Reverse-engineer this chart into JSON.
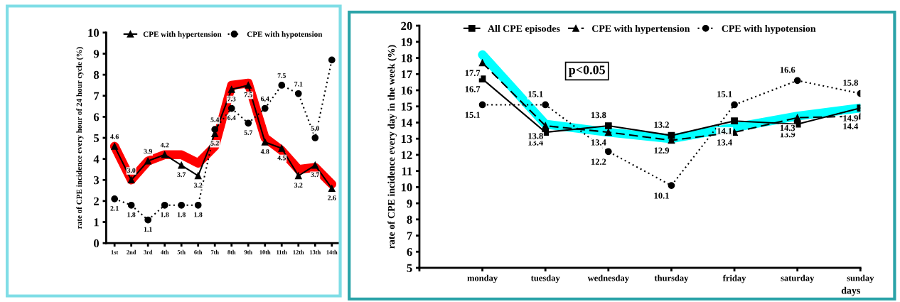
{
  "chart_data": [
    {
      "type": "line",
      "ylabel": "rate of CPE incidence every hour of 24 hour cycle (%)",
      "categories": [
        "1st",
        "2nd",
        "3rd",
        "4th",
        "5th",
        "6th",
        "7th",
        "8th",
        "9th",
        "10th",
        "11th",
        "12th",
        "13th",
        "14th"
      ],
      "ylim": [
        0,
        10
      ],
      "yticks": [
        0,
        1,
        2,
        3,
        4,
        5,
        6,
        7,
        8,
        9,
        10
      ],
      "grid": false,
      "legend": "top",
      "series": [
        {
          "name": "CPE with hypertension",
          "color": "#000000",
          "marker": "triangle",
          "line_style": "solid",
          "values": [
            4.6,
            3.0,
            3.9,
            4.2,
            3.7,
            3.2,
            5.2,
            7.3,
            7.5,
            4.8,
            4.5,
            3.2,
            3.7,
            2.6
          ],
          "value_labels": [
            "4.6",
            "3.0",
            "3.9",
            "4.2",
            "3.7",
            "3.2",
            "5.2",
            "7.3",
            "7.5",
            "4.8",
            "4.5",
            "3.2",
            "3.7",
            "2.6"
          ]
        },
        {
          "name": "CPE with hypotension",
          "color": "#000000",
          "marker": "circle",
          "line_style": "dotted",
          "values": [
            2.1,
            1.8,
            1.1,
            1.8,
            1.8,
            1.8,
            5.4,
            6.4,
            5.7,
            6.4,
            7.5,
            7.1,
            5.0,
            8.7
          ],
          "value_labels": [
            "2.1",
            "1.8",
            "1.1",
            "1.8",
            "1.8",
            "1.8",
            "5.4",
            "6.4",
            "5.7",
            "6,4",
            "7.5",
            "7.1",
            "5,0",
            null
          ]
        },
        {
          "color": "#ff0000",
          "marker": "none",
          "line_style": "solid",
          "values": [
            4.6,
            3.0,
            3.9,
            4.2,
            4.2,
            3.8,
            4.6,
            7.5,
            7.6,
            5.0,
            4.4,
            3.5,
            3.6,
            2.8
          ]
        }
      ]
    },
    {
      "type": "line",
      "ylabel": "rate of CPE incidence every day in the week (%)",
      "xlabel": "days",
      "categories": [
        null,
        "monday",
        "tuesday",
        "wednesday",
        "thursday",
        "friday",
        "saturday",
        "sunday"
      ],
      "ylim": [
        5,
        20
      ],
      "yticks": [
        5,
        6,
        7,
        8,
        9,
        10,
        11,
        12,
        13,
        14,
        15,
        16,
        17,
        18,
        19,
        20
      ],
      "grid": false,
      "legend": "top",
      "annotations": [
        "p<0.05"
      ],
      "series": [
        {
          "name": "All CPE episodes",
          "color": "#000000",
          "marker": "square",
          "line_style": "solid",
          "values": [
            null,
            16.7,
            13.4,
            13.8,
            13.2,
            14.1,
            13.9,
            14.9
          ],
          "value_labels": [
            null,
            "16.7",
            "13.4",
            "13.8",
            "13.2",
            "14.1",
            "13.9",
            "14.9"
          ]
        },
        {
          "name": "CPE with hypertension",
          "color": "#000000",
          "marker": "triangle",
          "line_style": "dashed",
          "values": [
            null,
            17.7,
            13.8,
            13.4,
            12.9,
            13.4,
            14.3,
            14.4
          ],
          "value_labels": [
            null,
            "17.7",
            "13.8",
            "13.4",
            "12.9",
            "13.4",
            "14.3",
            "14.4"
          ]
        },
        {
          "name": "CPE with hypotension",
          "color": "#000000",
          "marker": "circle",
          "line_style": "dotted",
          "values": [
            null,
            15.1,
            15.1,
            12.2,
            10.1,
            15.1,
            16.6,
            15.8
          ],
          "value_labels": [
            null,
            "15.1",
            "15.1",
            "12.2",
            "10.1",
            "15.1",
            "16.6",
            "15.8"
          ]
        },
        {
          "color": "#00ffff",
          "marker": "none",
          "line_style": "solid",
          "values": [
            null,
            18.2,
            13.9,
            13.4,
            13.0,
            13.7,
            14.4,
            14.9
          ]
        }
      ]
    }
  ]
}
